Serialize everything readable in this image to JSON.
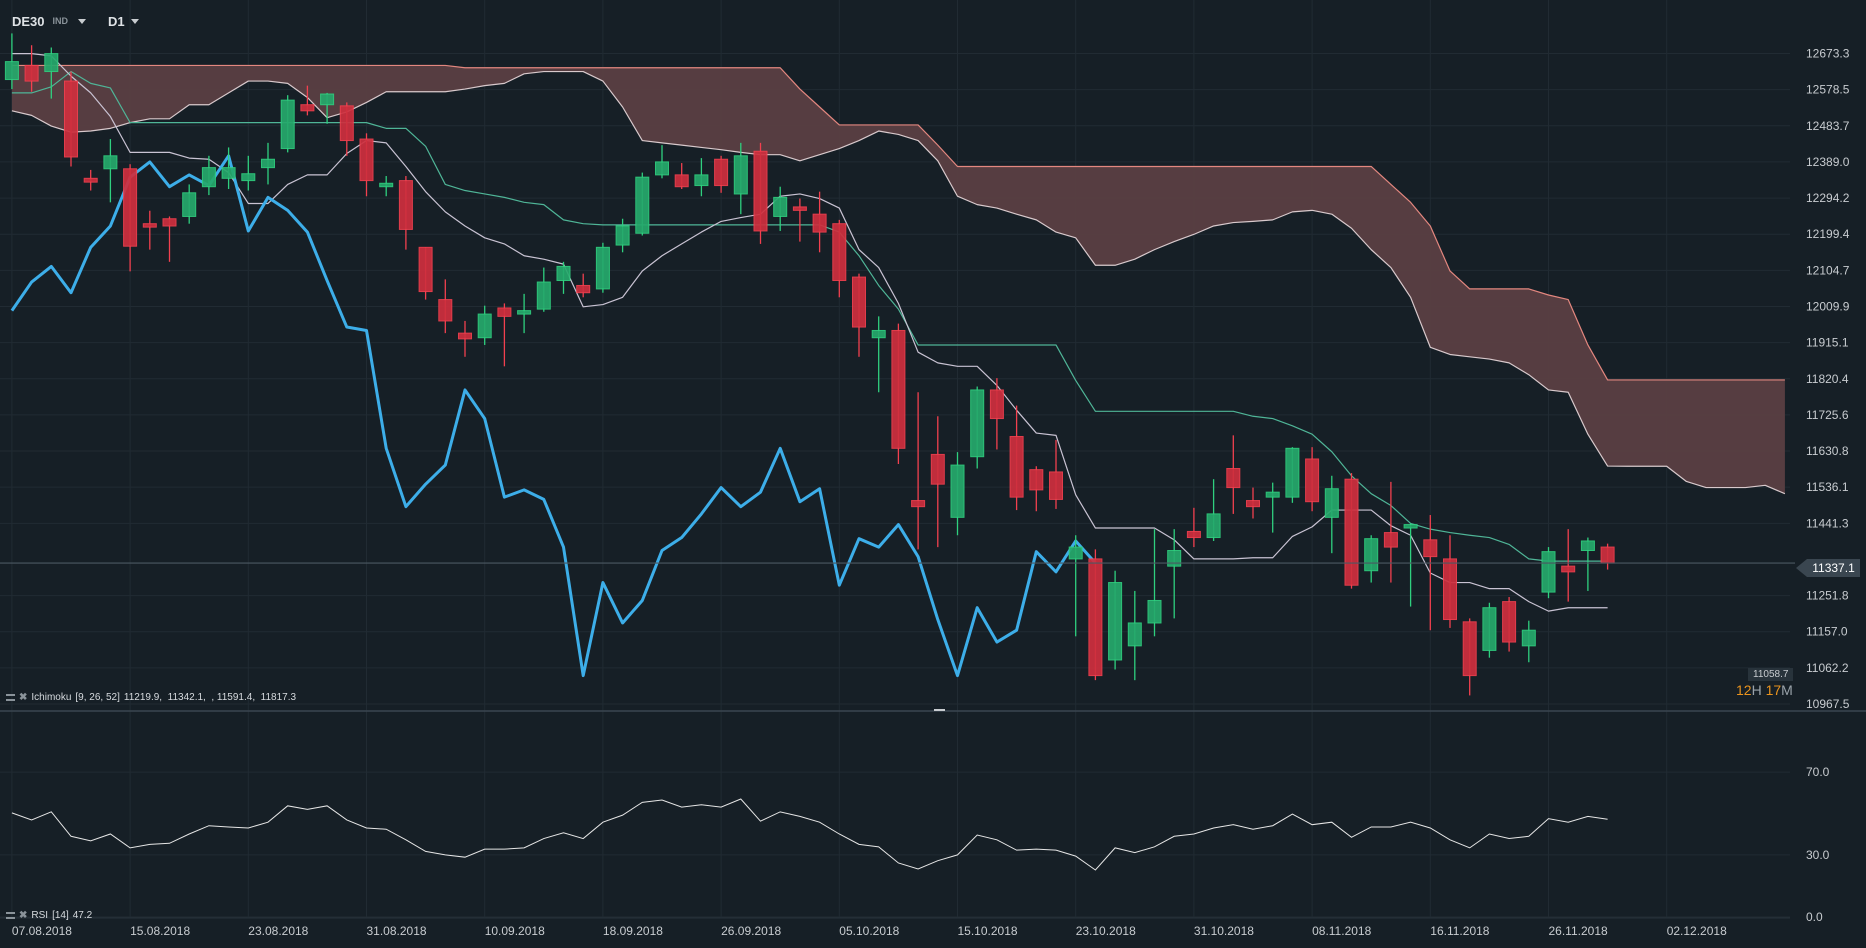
{
  "header": {
    "symbol": "DE30",
    "symbol_type": "IND",
    "timeframe": "D1"
  },
  "colors": {
    "background": "#161f26",
    "grid": "#212b33",
    "up": "#26a96c",
    "up_border": "#2fd07f",
    "down": "#cf2f3e",
    "down_border": "#f2404f",
    "tenkan": "#c9c3d3",
    "kijun": "#4fb597",
    "span_a": "#d8c9cc",
    "span_b": "#e3877f",
    "cloud": "#5a3f42",
    "chikou": "#3daee9",
    "rsi": "#e6e6e6",
    "price_line": "#4b5862",
    "timer_accent": "#e8931e"
  },
  "price_axis": {
    "labels": [
      "12673.3",
      "12578.5",
      "12483.7",
      "12389.0",
      "12294.2",
      "12199.4",
      "12104.7",
      "12009.9",
      "11915.1",
      "11820.4",
      "11725.6",
      "11630.8",
      "11536.1",
      "11441.3",
      "11251.8",
      "11157.0",
      "11062.2",
      "10967.5"
    ]
  },
  "current_price": "11337.1",
  "low_marker": "11058.7",
  "countdown": {
    "hours": "12",
    "h": "H",
    "minutes": "17",
    "m": "M"
  },
  "ichimoku_legend": {
    "name": "Ichimoku",
    "params": "[9, 26, 52]",
    "values": "11219.9,  11342.1,  , 11591.4,  11817.3"
  },
  "rsi_legend": {
    "name": "RSI",
    "params": "[14]",
    "value": "47.2"
  },
  "rsi_axis": {
    "labels": [
      "70.0",
      "30.0",
      "0.0"
    ],
    "values": [
      70,
      30,
      0
    ]
  },
  "x_axis": {
    "labels": [
      "07.08.2018",
      "15.08.2018",
      "23.08.2018",
      "31.08.2018",
      "10.09.2018",
      "18.09.2018",
      "26.09.2018",
      "05.10.2018",
      "15.10.2018",
      "23.10.2018",
      "31.10.2018",
      "08.11.2018",
      "16.11.2018",
      "26.11.2018",
      "02.12.2018"
    ]
  },
  "chart_data": {
    "type": "candlestick",
    "dates": [
      "07.08.2018",
      "08.08.2018",
      "09.08.2018",
      "10.08.2018",
      "13.08.2018",
      "14.08.2018",
      "15.08.2018",
      "16.08.2018",
      "17.08.2018",
      "20.08.2018",
      "21.08.2018",
      "22.08.2018",
      "23.08.2018",
      "24.08.2018",
      "27.08.2018",
      "28.08.2018",
      "29.08.2018",
      "30.08.2018",
      "31.08.2018",
      "03.09.2018",
      "04.09.2018",
      "05.09.2018",
      "06.09.2018",
      "07.09.2018",
      "10.09.2018",
      "11.09.2018",
      "12.09.2018",
      "13.09.2018",
      "14.09.2018",
      "17.09.2018",
      "18.09.2018",
      "19.09.2018",
      "20.09.2018",
      "21.09.2018",
      "24.09.2018",
      "25.09.2018",
      "26.09.2018",
      "27.09.2018",
      "28.09.2018",
      "01.10.2018",
      "02.10.2018",
      "04.10.2018",
      "05.10.2018",
      "08.10.2018",
      "09.10.2018",
      "10.10.2018",
      "11.10.2018",
      "12.10.2018",
      "15.10.2018",
      "16.10.2018",
      "17.10.2018",
      "18.10.2018",
      "19.10.2018",
      "22.10.2018",
      "23.10.2018",
      "24.10.2018",
      "25.10.2018",
      "26.10.2018",
      "29.10.2018",
      "30.10.2018",
      "31.10.2018",
      "01.11.2018",
      "02.11.2018",
      "05.11.2018",
      "06.11.2018",
      "07.11.2018",
      "08.11.2018",
      "09.11.2018",
      "12.11.2018",
      "13.11.2018",
      "14.11.2018",
      "15.11.2018",
      "16.11.2018",
      "19.11.2018",
      "20.11.2018",
      "21.11.2018",
      "22.11.2018",
      "23.11.2018",
      "26.11.2018",
      "27.11.2018",
      "28.11.2018",
      "29.11.2018"
    ],
    "ohlc": [
      [
        12605,
        12726,
        12580,
        12652
      ],
      [
        12642,
        12695,
        12573,
        12601
      ],
      [
        12626,
        12689,
        12555,
        12673
      ],
      [
        12601,
        12626,
        12377,
        12402
      ],
      [
        12346,
        12368,
        12314,
        12336
      ],
      [
        12371,
        12449,
        12283,
        12405
      ],
      [
        12371,
        12383,
        12102,
        12168
      ],
      [
        12227,
        12261,
        12159,
        12218
      ],
      [
        12240,
        12246,
        12127,
        12221
      ],
      [
        12246,
        12330,
        12227,
        12308
      ],
      [
        12324,
        12405,
        12302,
        12374
      ],
      [
        12346,
        12427,
        12318,
        12374
      ],
      [
        12340,
        12405,
        12314,
        12358
      ],
      [
        12374,
        12439,
        12330,
        12396
      ],
      [
        12424,
        12564,
        12414,
        12551
      ],
      [
        12539,
        12589,
        12511,
        12523
      ],
      [
        12539,
        12570,
        12489,
        12567
      ],
      [
        12536,
        12545,
        12405,
        12445
      ],
      [
        12449,
        12464,
        12299,
        12340
      ],
      [
        12324,
        12352,
        12299,
        12333
      ],
      [
        12340,
        12352,
        12159,
        12212
      ],
      [
        12165,
        12165,
        12028,
        12049
      ],
      [
        12028,
        12081,
        11940,
        11972
      ],
      [
        11940,
        11972,
        11878,
        11925
      ],
      [
        11928,
        12012,
        11909,
        11990
      ],
      [
        12006,
        12018,
        11853,
        11984
      ],
      [
        11990,
        12043,
        11940,
        11999
      ],
      [
        12003,
        12112,
        11996,
        12074
      ],
      [
        12078,
        12127,
        12043,
        12115
      ],
      [
        12065,
        12096,
        12034,
        12046
      ],
      [
        12056,
        12177,
        12046,
        12165
      ],
      [
        12171,
        12240,
        12152,
        12221
      ],
      [
        12202,
        12361,
        12196,
        12349
      ],
      [
        12355,
        12433,
        12346,
        12389
      ],
      [
        12355,
        12386,
        12318,
        12324
      ],
      [
        12327,
        12399,
        12299,
        12355
      ],
      [
        12396,
        12405,
        12308,
        12327
      ],
      [
        12305,
        12439,
        12252,
        12405
      ],
      [
        12417,
        12439,
        12174,
        12208
      ],
      [
        12246,
        12324,
        12208,
        12296
      ],
      [
        12271,
        12293,
        12180,
        12262
      ],
      [
        12252,
        12311,
        12152,
        12205
      ],
      [
        12227,
        12237,
        12034,
        12078
      ],
      [
        12087,
        12096,
        11878,
        11956
      ],
      [
        11928,
        11984,
        11785,
        11947
      ],
      [
        11947,
        11965,
        11597,
        11638
      ],
      [
        11501,
        11785,
        11373,
        11485
      ],
      [
        11622,
        11722,
        11379,
        11544
      ],
      [
        11457,
        11628,
        11410,
        11594
      ],
      [
        11616,
        11800,
        11585,
        11791
      ],
      [
        11791,
        11822,
        11635,
        11716
      ],
      [
        11669,
        11750,
        11476,
        11510
      ],
      [
        11582,
        11591,
        11473,
        11529
      ],
      [
        11576,
        11660,
        11479,
        11504
      ],
      [
        11348,
        11410,
        11145,
        11379
      ],
      [
        11348,
        11373,
        11030,
        11042
      ],
      [
        11083,
        11317,
        11058,
        11286
      ],
      [
        11120,
        11264,
        11030,
        11180
      ],
      [
        11180,
        11426,
        11145,
        11239
      ],
      [
        11329,
        11426,
        11192,
        11370
      ],
      [
        11420,
        11482,
        11379,
        11404
      ],
      [
        11404,
        11557,
        11395,
        11466
      ],
      [
        11585,
        11672,
        11466,
        11535
      ],
      [
        11501,
        11535,
        11454,
        11485
      ],
      [
        11510,
        11548,
        11417,
        11523
      ],
      [
        11510,
        11641,
        11495,
        11638
      ],
      [
        11610,
        11641,
        11473,
        11498
      ],
      [
        11457,
        11566,
        11363,
        11532
      ],
      [
        11557,
        11573,
        11270,
        11279
      ],
      [
        11317,
        11410,
        11286,
        11401
      ],
      [
        11417,
        11550,
        11286,
        11379
      ],
      [
        11429,
        11441,
        11223,
        11438
      ],
      [
        11398,
        11463,
        11161,
        11354
      ],
      [
        11348,
        11410,
        11167,
        11189
      ],
      [
        11183,
        11192,
        10990,
        11042
      ],
      [
        11108,
        11233,
        11089,
        11220
      ],
      [
        11236,
        11248,
        11105,
        11130
      ],
      [
        11120,
        11186,
        11077,
        11161
      ],
      [
        11261,
        11379,
        11245,
        11367
      ],
      [
        11329,
        11426,
        11236,
        11314
      ],
      [
        11370,
        11404,
        11264,
        11395
      ],
      [
        11379,
        11388,
        11320,
        11337.1
      ]
    ],
    "ichimoku": {
      "params": [
        9,
        26,
        52
      ],
      "tenkan": [
        12673,
        12673,
        12667,
        12614,
        12570,
        12508,
        12414,
        12414,
        12414,
        12399,
        12396,
        12361,
        12280,
        12280,
        12330,
        12355,
        12355,
        12411,
        12445,
        12439,
        12377,
        12311,
        12258,
        12221,
        12190,
        12174,
        12143,
        12134,
        12121,
        12009,
        12015,
        12034,
        12103,
        12143,
        12174,
        12205,
        12233,
        12243,
        12252,
        12299,
        12305,
        12293,
        12268,
        12159,
        12112,
        12018,
        11890,
        11862,
        11853,
        11853,
        11803,
        11738,
        11678,
        11672,
        11516,
        11429,
        11429,
        11429,
        11429,
        11398,
        11348,
        11348,
        11348,
        11351,
        11351,
        11407,
        11432,
        11476,
        11476,
        11476,
        11435,
        11410,
        11311,
        11286,
        11286,
        11270,
        11270,
        11236,
        11211,
        11219.9,
        11219.9,
        11219.9
      ],
      "kijun": [
        12570,
        12570,
        12586,
        12626,
        12595,
        12583,
        12492,
        12492,
        12492,
        12492,
        12492,
        12492,
        12492,
        12492,
        12492,
        12492,
        12492,
        12492,
        12492,
        12477,
        12477,
        12430,
        12330,
        12314,
        12305,
        12296,
        12283,
        12277,
        12237,
        12227,
        12224,
        12224,
        12224,
        12224,
        12224,
        12224,
        12224,
        12224,
        12224,
        12224,
        12224,
        12224,
        12205,
        12143,
        12065,
        12003,
        11909,
        11909,
        11909,
        11909,
        11909,
        11909,
        11909,
        11909,
        11816,
        11735,
        11735,
        11735,
        11735,
        11735,
        11735,
        11735,
        11735,
        11722,
        11716,
        11697,
        11675,
        11629,
        11566,
        11519,
        11488,
        11441,
        11426,
        11417,
        11410,
        11404,
        11386,
        11348,
        11342.1,
        11342.1,
        11342.1,
        11342.1
      ],
      "span_a": [
        12523,
        12511,
        12483,
        12467,
        12470,
        12477,
        12492,
        12502,
        12502,
        12539,
        12539,
        12570,
        12601,
        12601,
        12595,
        12558,
        12505,
        12520,
        12545,
        12573,
        12573,
        12573,
        12573,
        12580,
        12589,
        12595,
        12620,
        12626,
        12626,
        12626,
        12601,
        12533,
        12445,
        12439,
        12433,
        12427,
        12421,
        12414,
        12408,
        12408,
        12392,
        12408,
        12424,
        12445,
        12470,
        12461,
        12445,
        12392,
        12299,
        12277,
        12268,
        12252,
        12237,
        12205,
        12190,
        12118,
        12118,
        12134,
        12159,
        12180,
        12199,
        12221,
        12230,
        12233,
        12237,
        12258,
        12262,
        12252,
        12215,
        12159,
        12112,
        12034,
        11903,
        11884,
        11878,
        11872,
        11862,
        11831,
        11791,
        11785,
        11675,
        11591.4,
        11591,
        11591,
        11591,
        11551,
        11535,
        11535,
        11535,
        11541,
        11519
      ],
      "span_b": [
        12642,
        12642,
        12642,
        12642,
        12642,
        12642,
        12642,
        12642,
        12642,
        12642,
        12642,
        12642,
        12642,
        12642,
        12642,
        12642,
        12642,
        12642,
        12642,
        12642,
        12642,
        12642,
        12642,
        12636,
        12636,
        12636,
        12636,
        12636,
        12636,
        12636,
        12636,
        12636,
        12636,
        12636,
        12636,
        12636,
        12636,
        12636,
        12636,
        12636,
        12580,
        12533,
        12486,
        12486,
        12486,
        12486,
        12486,
        12433,
        12377,
        12377,
        12377,
        12377,
        12377,
        12377,
        12377,
        12377,
        12377,
        12377,
        12377,
        12377,
        12377,
        12377,
        12377,
        12377,
        12377,
        12377,
        12377,
        12377,
        12377,
        12377,
        12330,
        12283,
        12221,
        12103,
        12056,
        12056,
        12056,
        12056,
        12040,
        12028,
        11909,
        11817.3,
        11817.3,
        11817.3,
        11817.3,
        11817.3,
        11817.3,
        11817.3,
        11817.3,
        11817.3,
        11817.3
      ]
    },
    "rsi": [
      50.3,
      46.9,
      50.8,
      39.0,
      36.8,
      40.1,
      33.4,
      35.1,
      35.6,
      40.1,
      44.1,
      43.5,
      43.0,
      45.8,
      53.7,
      52.0,
      53.7,
      46.9,
      43.0,
      42.4,
      37.3,
      31.7,
      30.0,
      28.9,
      32.8,
      32.8,
      33.4,
      37.9,
      40.7,
      37.9,
      45.8,
      49.2,
      55.4,
      56.5,
      53.1,
      54.2,
      53.1,
      57.0,
      46.3,
      50.8,
      48.6,
      45.8,
      40.1,
      35.1,
      33.9,
      26.1,
      23.2,
      27.2,
      30.0,
      39.6,
      37.3,
      32.3,
      32.8,
      32.3,
      29.4,
      22.7,
      33.4,
      31.1,
      33.9,
      39.0,
      40.1,
      43.0,
      44.6,
      42.4,
      44.1,
      49.7,
      44.6,
      45.8,
      38.5,
      43.5,
      43.5,
      45.8,
      43.0,
      37.3,
      33.4,
      40.1,
      37.9,
      39.0,
      47.5,
      45.8,
      48.6,
      47.2
    ],
    "y_range": [
      10967.5,
      12673.3
    ],
    "rsi_range": [
      0,
      100
    ],
    "grid": true
  }
}
